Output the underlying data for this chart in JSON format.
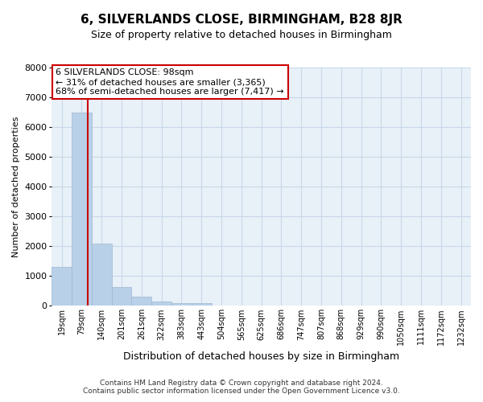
{
  "title": "6, SILVERLANDS CLOSE, BIRMINGHAM, B28 8JR",
  "subtitle": "Size of property relative to detached houses in Birmingham",
  "xlabel": "Distribution of detached houses by size in Birmingham",
  "ylabel": "Number of detached properties",
  "bar_labels": [
    "19sqm",
    "79sqm",
    "140sqm",
    "201sqm",
    "261sqm",
    "322sqm",
    "383sqm",
    "443sqm",
    "504sqm",
    "565sqm",
    "625sqm",
    "686sqm",
    "747sqm",
    "807sqm",
    "868sqm",
    "929sqm",
    "990sqm",
    "1050sqm",
    "1111sqm",
    "1172sqm",
    "1232sqm"
  ],
  "bar_values": [
    1300,
    6500,
    2080,
    630,
    300,
    150,
    80,
    80,
    0,
    0,
    0,
    0,
    0,
    0,
    0,
    0,
    0,
    0,
    0,
    0,
    0
  ],
  "bar_color": "#b8d0e8",
  "bar_edge_color": "#a0b8d0",
  "vline_color": "#cc0000",
  "ylim": [
    0,
    8000
  ],
  "yticks": [
    0,
    1000,
    2000,
    3000,
    4000,
    5000,
    6000,
    7000,
    8000
  ],
  "annotation_title": "6 SILVERLANDS CLOSE: 98sqm",
  "annotation_line1": "← 31% of detached houses are smaller (3,365)",
  "annotation_line2": "68% of semi-detached houses are larger (7,417) →",
  "annotation_box_color": "#ffffff",
  "annotation_box_edge": "#cc0000",
  "footer1": "Contains HM Land Registry data © Crown copyright and database right 2024.",
  "footer2": "Contains public sector information licensed under the Open Government Licence v3.0.",
  "bg_color": "#ffffff",
  "plot_bg_color": "#e8f0f8",
  "grid_color": "#c8d8e8"
}
